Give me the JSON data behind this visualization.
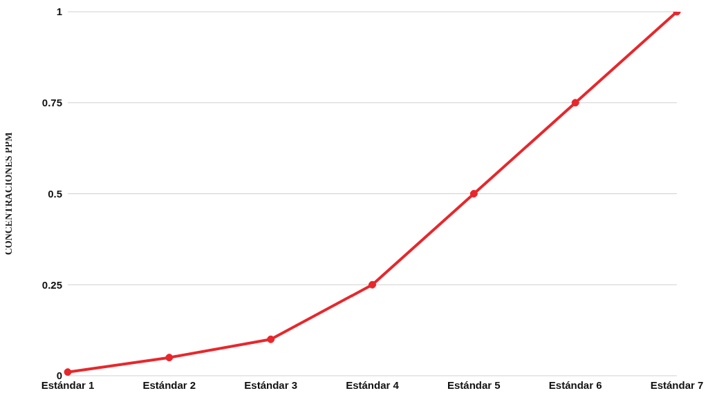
{
  "chart_data": {
    "type": "line",
    "ylabel": "CONCENTRACIONES  PPM",
    "categories": [
      "Estándar 1",
      "Estándar 2",
      "Estándar 3",
      "Estándar 4",
      "Estándar 5",
      "Estándar 6",
      "Estándar 7"
    ],
    "values": [
      0.01,
      0.05,
      0.1,
      0.25,
      0.5,
      0.75,
      1
    ],
    "color": "#e8272c",
    "ylim": [
      0,
      1
    ],
    "yticks": [
      0,
      0.25,
      0.5,
      0.75,
      1
    ],
    "grid": "y",
    "marker": "circle",
    "line_style": "solid"
  }
}
